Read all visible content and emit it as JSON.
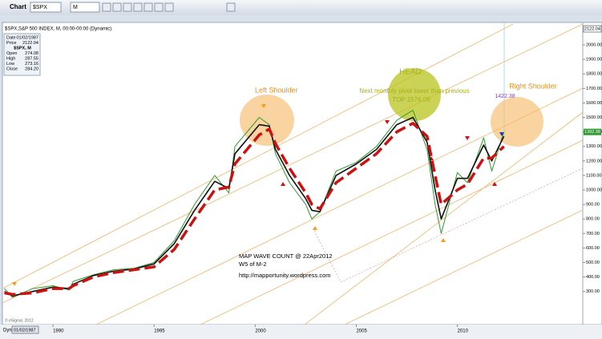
{
  "window": {
    "title": "Chart",
    "symbol": "$SPX",
    "interval": "M"
  },
  "info_panel": {
    "rows": [
      [
        "Date",
        "01/02/1987"
      ],
      [
        "Price",
        "2122.04"
      ]
    ],
    "symbol": "$SPX, M",
    "ohlc": [
      [
        "Open",
        "274.08"
      ],
      [
        "High",
        "287.55"
      ],
      [
        "Low",
        "273.16"
      ],
      [
        "Close",
        "284.20"
      ]
    ]
  },
  "chart_data": {
    "type": "line",
    "title": "$SPX,S&P 500 INDEX, M, 00:00-00:00 (Dynamic)",
    "x": [
      1987.6,
      1988,
      1989,
      1990,
      1990.8,
      1991,
      1992,
      1993,
      1994,
      1995,
      1996,
      1997,
      1998,
      1998.7,
      1999,
      2000.2,
      2000.7,
      2001,
      2001.7,
      2002.5,
      2002.8,
      2003.2,
      2004,
      2005,
      2006,
      2007,
      2007.8,
      2008.5,
      2008.9,
      2009.2,
      2010,
      2010.5,
      2011.3,
      2011.7,
      2012.3
    ],
    "series": [
      {
        "color": "#2f9a2f",
        "width": 1,
        "dashed": false,
        "values": [
          320,
          260,
          320,
          340,
          310,
          370,
          415,
          450,
          460,
          500,
          650,
          900,
          1100,
          980,
          1300,
          1500,
          1450,
          1250,
          1050,
          900,
          800,
          850,
          1130,
          1190,
          1300,
          1480,
          1550,
          1280,
          900,
          700,
          1120,
          1050,
          1360,
          1130,
          1400
        ]
      },
      {
        "color": "#111111",
        "width": 1.6,
        "dashed": false,
        "values": [
          300,
          270,
          300,
          330,
          320,
          350,
          410,
          440,
          455,
          490,
          630,
          860,
          1060,
          1010,
          1250,
          1450,
          1440,
          1280,
          1100,
          940,
          860,
          850,
          1100,
          1180,
          1280,
          1450,
          1500,
          1330,
          1000,
          800,
          1080,
          1080,
          1310,
          1200,
          1370
        ]
      },
      {
        "color": "#cc1111",
        "width": 3.5,
        "dashed": true,
        "values": [
          290,
          280,
          290,
          320,
          320,
          340,
          400,
          430,
          450,
          470,
          590,
          800,
          1000,
          1020,
          1180,
          1380,
          1420,
          1320,
          1150,
          980,
          900,
          870,
          1050,
          1150,
          1250,
          1400,
          1460,
          1370,
          1100,
          900,
          1000,
          1040,
          1220,
          1220,
          1300
        ]
      }
    ],
    "xlim": [
      1987.5,
      2016.2
    ],
    "xticks": [
      1990,
      1995,
      2000,
      2005,
      2010
    ],
    "ylim": [
      72,
      2155
    ],
    "yticks": [
      {
        "value": 300,
        "label": "300.00"
      },
      {
        "value": 400,
        "label": "400.00"
      },
      {
        "value": 500,
        "label": "500.00"
      },
      {
        "value": 600,
        "label": "600.00"
      },
      {
        "value": 700,
        "label": "700.00"
      },
      {
        "value": 800,
        "label": "800.00"
      },
      {
        "value": 900,
        "label": "900.00"
      },
      {
        "value": 1000,
        "label": "1000.00"
      },
      {
        "value": 1100,
        "label": "1100.00"
      },
      {
        "value": 1200,
        "label": "1200.00"
      },
      {
        "value": 1300,
        "label": "1300.00"
      },
      {
        "value": 1400,
        "label": "1400.00"
      },
      {
        "value": 1500,
        "label": "1500.00"
      },
      {
        "value": 1600,
        "label": "1600.00"
      },
      {
        "value": 1700,
        "label": "1700.00"
      },
      {
        "value": 1800,
        "label": "1800.00"
      },
      {
        "value": 1900,
        "label": "1900.00"
      },
      {
        "value": 2000,
        "label": "2000.00"
      }
    ],
    "last_price_label": "2122.04",
    "current_price_label": "1392.38",
    "annotations": {
      "left_shoulder": "Left Shoulder",
      "head": "HEAD",
      "pivot_note": "Next monthly pivot lower than previous",
      "top": "TOP 1576.09",
      "right_shoulder": "Right Shoulder",
      "right_value": "1422.38",
      "wave_count": "MAP WAVE COUNT @ 22Apr2012",
      "wave": "W5 of M-2",
      "url": "http://mapportunity.wordpress.com",
      "copyright": "© eSignal, 2012"
    },
    "x_axis_mode": "Dyn",
    "x_cursor_label": "01/02/1987"
  }
}
